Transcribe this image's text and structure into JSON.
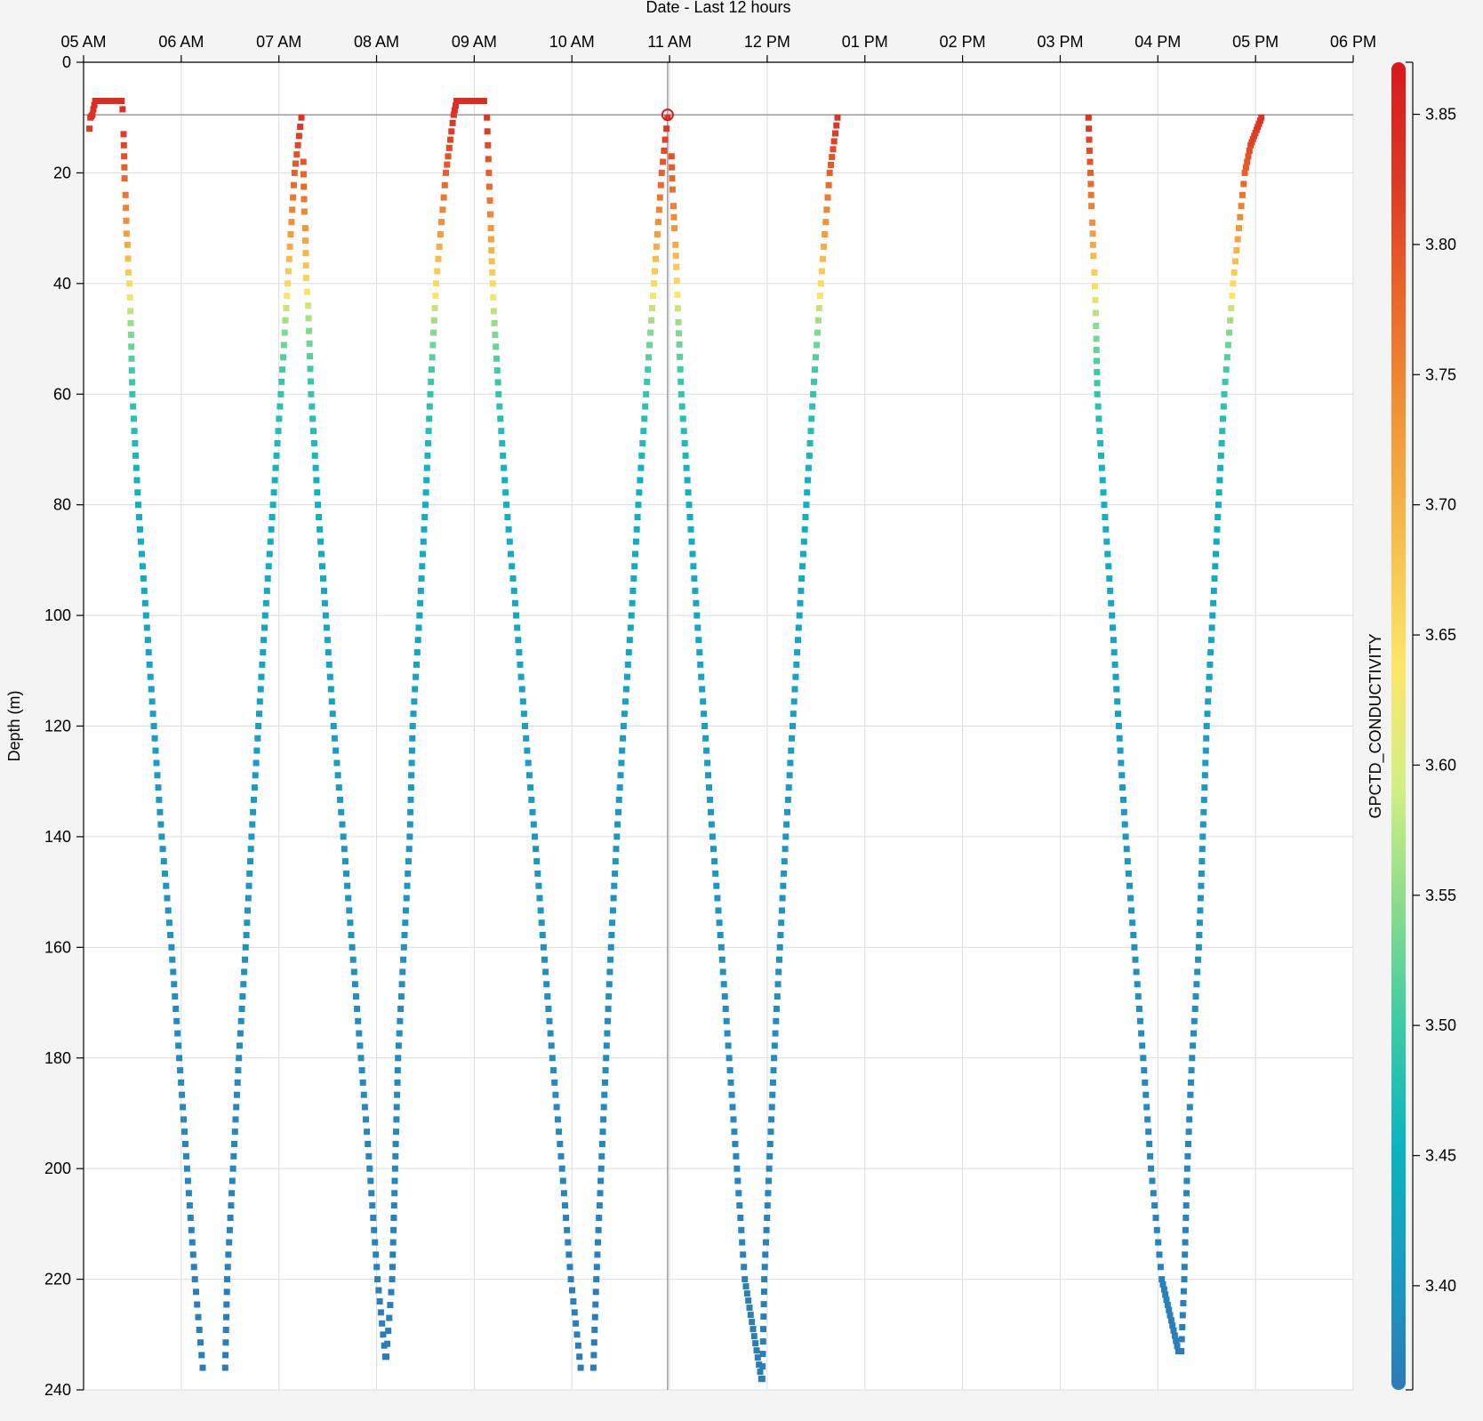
{
  "chart_data": {
    "type": "scatter",
    "title": "Date - Last 12 hours",
    "xlabel": "Date - Last 12 hours",
    "ylabel": "Depth (m)",
    "x_ticks": [
      "05 AM",
      "06 AM",
      "07 AM",
      "08 AM",
      "09 AM",
      "10 AM",
      "11 AM",
      "12 PM",
      "01 PM",
      "02 PM",
      "03 PM",
      "04 PM",
      "05 PM",
      "06 PM"
    ],
    "x_range_hours": [
      5,
      18
    ],
    "ylim": [
      0,
      240
    ],
    "y_ticks": [
      0,
      20,
      40,
      60,
      80,
      100,
      120,
      140,
      160,
      180,
      200,
      220,
      240
    ],
    "y_reversed": true,
    "grid": true,
    "colorbar": {
      "label": "GPCTD_CONDUCTIVITY",
      "range": [
        3.36,
        3.87
      ],
      "ticks": [
        3.4,
        3.45,
        3.5,
        3.55,
        3.6,
        3.65,
        3.7,
        3.75,
        3.8,
        3.85
      ],
      "tick_labels": [
        "3.40",
        "3.45",
        "3.50",
        "3.55",
        "3.60",
        "3.65",
        "3.70",
        "3.75",
        "3.80",
        "3.85"
      ],
      "colors": [
        "#2b7bba",
        "#1a9bc2",
        "#0bb4bf",
        "#3ccaa6",
        "#88dc8c",
        "#d4ef82",
        "#fbe66a",
        "#f7c04e",
        "#f29638",
        "#ea6a2a",
        "#dc3a24",
        "#d7191c"
      ]
    },
    "highlight": {
      "hour": 10.98,
      "depth": 9.5
    },
    "crosshair": {
      "hour": 10.98,
      "depth": 9.5
    },
    "profiles": [
      {
        "depth": [
          12,
          10,
          9.5,
          8.5,
          7,
          7,
          7,
          7,
          7,
          7,
          7,
          8.5
        ],
        "hour": [
          5.06,
          5.07,
          5.09,
          5.1,
          5.12,
          5.18,
          5.24,
          5.3,
          5.36,
          5.38,
          5.39,
          5.4
        ]
      },
      {
        "depth": [
          13,
          21,
          24,
          31,
          33,
          38,
          40,
          45,
          60,
          80,
          100,
          120,
          140,
          160,
          180,
          200,
          220,
          236
        ],
        "hour": [
          5.41,
          5.42,
          5.43,
          5.44,
          5.45,
          5.46,
          5.47,
          5.48,
          5.5,
          5.56,
          5.64,
          5.72,
          5.8,
          5.9,
          5.98,
          6.06,
          6.14,
          6.22
        ]
      },
      {
        "depth": [
          236,
          220,
          200,
          180,
          160,
          140,
          120,
          100,
          80,
          60,
          40,
          20,
          10
        ],
        "hour": [
          6.45,
          6.47,
          6.53,
          6.59,
          6.66,
          6.72,
          6.79,
          6.86,
          6.94,
          7.02,
          7.09,
          7.16,
          7.23
        ]
      },
      {
        "depth": [
          18,
          27,
          30,
          39,
          44,
          60,
          80,
          100,
          120,
          140,
          160,
          180,
          200,
          220,
          234
        ],
        "hour": [
          7.25,
          7.26,
          7.27,
          7.28,
          7.3,
          7.33,
          7.4,
          7.48,
          7.56,
          7.66,
          7.75,
          7.84,
          7.93,
          8.01,
          8.09
        ]
      },
      {
        "depth": [
          234,
          220,
          200,
          180,
          160,
          140,
          120,
          100,
          80,
          60,
          40,
          20,
          9.5,
          7,
          7,
          7,
          7
        ],
        "hour": [
          8.1,
          8.16,
          8.19,
          8.22,
          8.28,
          8.34,
          8.37,
          8.44,
          8.5,
          8.55,
          8.61,
          8.71,
          8.79,
          8.82,
          8.9,
          8.98,
          9.1
        ]
      },
      {
        "depth": [
          10,
          15,
          20,
          25,
          30,
          36,
          40,
          45,
          60,
          80,
          100,
          120,
          140,
          160,
          180,
          200,
          220,
          236
        ],
        "hour": [
          9.13,
          9.14,
          9.15,
          9.16,
          9.17,
          9.18,
          9.19,
          9.2,
          9.25,
          9.33,
          9.43,
          9.52,
          9.62,
          9.71,
          9.8,
          9.9,
          9.99,
          10.09
        ]
      },
      {
        "depth": [
          236,
          220,
          200,
          180,
          160,
          140,
          120,
          100,
          80,
          60,
          40,
          20,
          10
        ],
        "hour": [
          10.22,
          10.25,
          10.3,
          10.35,
          10.4,
          10.46,
          10.53,
          10.61,
          10.68,
          10.76,
          10.84,
          10.92,
          10.98
        ]
      },
      {
        "depth": [
          17,
          23,
          26,
          30,
          33,
          37,
          42,
          47,
          51,
          60,
          80,
          100,
          120,
          140,
          160,
          180,
          200,
          220,
          238
        ],
        "hour": [
          11.02,
          11.03,
          11.04,
          11.05,
          11.06,
          11.07,
          11.08,
          11.09,
          11.1,
          11.12,
          11.2,
          11.28,
          11.36,
          11.44,
          11.53,
          11.61,
          11.69,
          11.77,
          11.94
        ]
      },
      {
        "depth": [
          238,
          220,
          200,
          180,
          160,
          140,
          120,
          100,
          80,
          60,
          40,
          20,
          10
        ],
        "hour": [
          11.95,
          11.97,
          12.02,
          12.07,
          12.13,
          12.19,
          12.26,
          12.33,
          12.4,
          12.47,
          12.55,
          12.64,
          12.72
        ]
      },
      {
        "depth": [
          10,
          16,
          20,
          26,
          29,
          35,
          38,
          43,
          50,
          60,
          80,
          100,
          120,
          140,
          160,
          180,
          200,
          220,
          233
        ],
        "hour": [
          15.29,
          15.3,
          15.31,
          15.32,
          15.33,
          15.34,
          15.35,
          15.36,
          15.37,
          15.38,
          15.45,
          15.53,
          15.6,
          15.67,
          15.76,
          15.85,
          15.93,
          16.04,
          16.21
        ]
      },
      {
        "depth": [
          233,
          220,
          200,
          180,
          160,
          140,
          120,
          100,
          80,
          60,
          40,
          30,
          20,
          15,
          10
        ],
        "hour": [
          16.24,
          16.27,
          16.3,
          16.35,
          16.42,
          16.46,
          16.5,
          16.56,
          16.62,
          16.68,
          16.77,
          16.83,
          16.89,
          16.95,
          17.06
        ]
      }
    ]
  }
}
